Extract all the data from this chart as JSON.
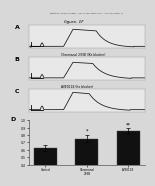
{
  "bg_color": "#d8d8d8",
  "header_text": "Patent Application Publication    Feb. 21, 2013 Sheet 1 of 11    US 2013/0045971 A1",
  "fig_label": "figure. 1F",
  "panel_A_label": "A",
  "panel_B_label": "B",
  "panel_C_label": "C",
  "panel_D_label": "D",
  "panel_B_annotation": "Chromanol 293B (IKs blocker)",
  "panel_C_annotation": "AVE0118 (Ito blocker)",
  "bar_values": [
    0.62,
    0.75,
    0.85
  ],
  "bar_colors": [
    "#111111",
    "#111111",
    "#111111"
  ],
  "bar_labels": [
    "Control",
    "Chromanol\n293B",
    "AVE0118"
  ],
  "bar_error": [
    0.04,
    0.05,
    0.04
  ],
  "ylim_bar": [
    0.4,
    1.0
  ],
  "yticks_bar": [
    0.4,
    0.5,
    0.6,
    0.7,
    0.8,
    0.9,
    1.0
  ],
  "bar_asterisks": [
    "",
    "*",
    "**"
  ],
  "trace_bg": "#e8e8e8",
  "trace_line_color": "#222222"
}
